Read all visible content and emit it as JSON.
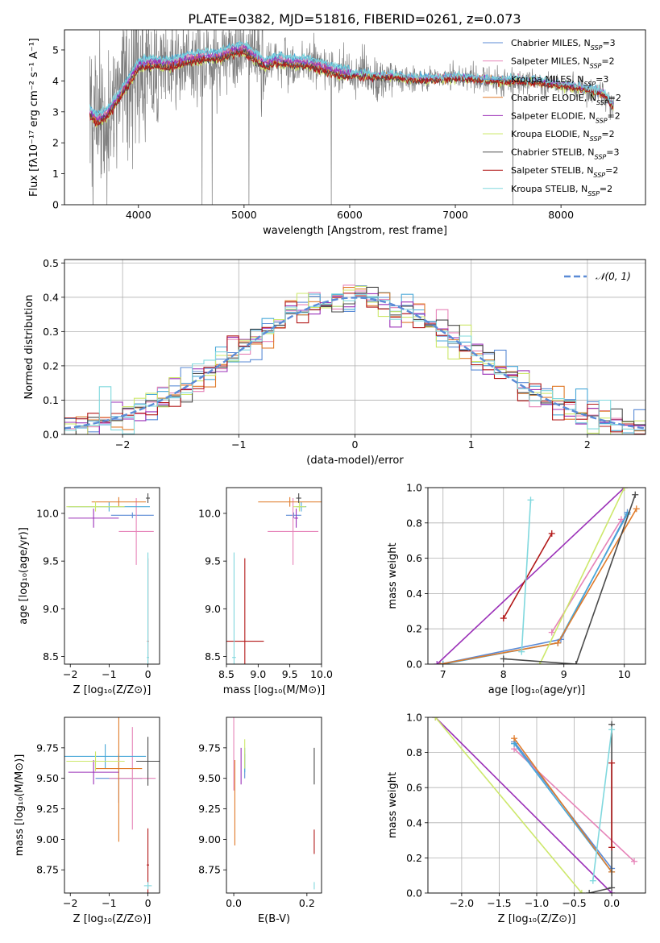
{
  "figure": {
    "title": "PLATE=0382, MJD=51816, FIBERID=0261, z=0.073"
  },
  "colors": {
    "Chabrier MILES": "#5b8bd6",
    "Salpeter MILES": "#e683b8",
    "Kroupa MILES": "#48a8d8",
    "Chabrier ELODIE": "#e07b2a",
    "Salpeter ELODIE": "#9b30b8",
    "Kroupa ELODIE": "#cde86b",
    "Chabrier STELIB": "#4b4b4b",
    "Salpeter STELIB": "#b21818",
    "Kroupa STELIB": "#80d8de",
    "data": "#808080",
    "normal": "#5b8bd6"
  },
  "chart_data": [
    {
      "id": "spectrum",
      "type": "line",
      "xlabel": "wavelength [Angstrom, rest frame]",
      "ylabel": "Flux [fλ10⁻¹⁷ erg cm⁻² s⁻¹ A⁻¹]",
      "xlim": [
        3300,
        8800
      ],
      "ylim": [
        0,
        5.65
      ],
      "xticks": [
        4000,
        5000,
        6000,
        7000,
        8000
      ],
      "yticks": [
        0,
        1,
        2,
        3,
        4,
        5
      ],
      "grid": false,
      "legend_position": "upper right",
      "legend": [
        {
          "name": "Chabrier MILES",
          "main": "Chabrier MILES, N",
          "sub": "SSP",
          "rest": "=3"
        },
        {
          "name": "Salpeter MILES",
          "main": "Salpeter MILES, N",
          "sub": "SSP",
          "rest": "=2"
        },
        {
          "name": "Kroupa MILES",
          "main": "Kroupa MILES, N",
          "sub": "SSP",
          "rest": "=3"
        },
        {
          "name": "Chabrier ELODIE",
          "main": "Chabrier ELODIE, N",
          "sub": "SSP",
          "rest": "=2"
        },
        {
          "name": "Salpeter ELODIE",
          "main": "Salpeter ELODIE, N",
          "sub": "SSP",
          "rest": "=2"
        },
        {
          "name": "Kroupa ELODIE",
          "main": "Kroupa ELODIE, N",
          "sub": "SSP",
          "rest": "=2"
        },
        {
          "name": "Chabrier STELIB",
          "main": "Chabrier STELIB, N",
          "sub": "SSP",
          "rest": "=3"
        },
        {
          "name": "Salpeter STELIB",
          "main": "Salpeter STELIB, N",
          "sub": "SSP",
          "rest": "=2"
        },
        {
          "name": "Kroupa STELIB",
          "main": "Kroupa STELIB, N",
          "sub": "SSP",
          "rest": "=2"
        }
      ],
      "continuum": {
        "x": [
          3530,
          3600,
          3700,
          3800,
          3900,
          4000,
          4100,
          4200,
          4300,
          4400,
          4500,
          4600,
          4700,
          4800,
          4900,
          5000,
          5100,
          5200,
          5300,
          5400,
          5500,
          5600,
          5700,
          5800,
          5900,
          6000,
          6200,
          6400,
          6600,
          6800,
          7000,
          7200,
          7400,
          7600,
          7800,
          8000,
          8200,
          8400,
          8520
        ],
        "y": [
          3.0,
          2.7,
          2.9,
          3.4,
          3.9,
          4.45,
          4.55,
          4.55,
          4.5,
          4.6,
          4.7,
          4.75,
          4.75,
          4.8,
          4.95,
          5.0,
          4.75,
          4.5,
          4.65,
          4.6,
          4.55,
          4.55,
          4.45,
          4.35,
          4.25,
          4.2,
          4.15,
          4.15,
          4.05,
          4.05,
          4.1,
          4.05,
          4.0,
          4.0,
          3.95,
          3.85,
          3.75,
          3.6,
          3.05
        ]
      },
      "model_offsets": [
        0.0,
        0.12,
        0.18,
        -0.02,
        0.05,
        -0.12,
        -0.08,
        -0.1,
        0.2
      ],
      "data_x_range": [
        3540,
        8500
      ]
    },
    {
      "id": "residuals",
      "type": "step",
      "xlabel": "(data-model)/error",
      "ylabel": "Normed distribution",
      "xlim": [
        -2.5,
        2.5
      ],
      "ylim": [
        0,
        0.51
      ],
      "xticks": [
        -2,
        -1,
        0,
        1,
        2
      ],
      "yticks": [
        0.0,
        0.1,
        0.2,
        0.3,
        0.4,
        0.5
      ],
      "grid": true,
      "bin_width": 0.1,
      "legend": [
        {
          "name": "normal",
          "label": "𝒩(0, 1)",
          "style": "dashed"
        }
      ],
      "legend_position": "upper right"
    },
    {
      "id": "age-vs-Z",
      "type": "errorbar",
      "xlabel": "Z [log₁₀(Z/Z⊙)]",
      "ylabel": "age  [log₁₀(age/yr)]",
      "xlim": [
        -2.15,
        0.3
      ],
      "ylim": [
        8.42,
        10.27
      ],
      "xticks": [
        -2,
        -1,
        0
      ],
      "yticks": [
        8.5,
        9.0,
        9.5,
        10.0
      ],
      "grid": false,
      "points": [
        {
          "model": "Chabrier MILES",
          "x": -0.4,
          "xerr": 0.55,
          "y": 9.98,
          "yerr": 0.03
        },
        {
          "model": "Salpeter MILES",
          "x": -0.3,
          "xerr": 0.45,
          "y": 9.81,
          "yerr": 0.35
        },
        {
          "model": "Kroupa MILES",
          "x": -1.0,
          "xerr": 1.05,
          "y": 10.07,
          "yerr": 0.05
        },
        {
          "model": "Chabrier ELODIE",
          "x": -0.75,
          "xerr": 0.7,
          "y": 10.12,
          "yerr": 0.05
        },
        {
          "model": "Salpeter ELODIE",
          "x": -1.4,
          "xerr": 0.65,
          "y": 9.95,
          "yerr": 0.1
        },
        {
          "model": "Kroupa ELODIE",
          "x": -1.35,
          "xerr": 0.75,
          "y": 10.07,
          "yerr": 0.05
        },
        {
          "model": "Chabrier STELIB",
          "x": 0.0,
          "xerr": 0.05,
          "y": 10.16,
          "yerr": 0.05
        },
        {
          "model": "Salpeter STELIB",
          "x": 0.0,
          "xerr": 0.02,
          "y": 8.66,
          "yerr": 0.87
        },
        {
          "model": "Kroupa STELIB",
          "x": 0.0,
          "xerr": 0.03,
          "y": 8.49,
          "yerr": 1.1
        }
      ]
    },
    {
      "id": "age-vs-mass",
      "type": "errorbar",
      "xlabel": "mass [log₁₀(M/M⊙)]",
      "ylabel": "",
      "xlim": [
        8.5,
        10.0
      ],
      "ylim": [
        8.42,
        10.27
      ],
      "xticks": [
        8.5,
        9.0,
        9.5,
        10.0
      ],
      "yticks": [
        8.5,
        9.0,
        9.5,
        10.0
      ],
      "grid": false,
      "points": [
        {
          "model": "Chabrier MILES",
          "x": 9.56,
          "xerr": 0.12,
          "y": 9.98,
          "yerr": 0.03
        },
        {
          "model": "Salpeter MILES",
          "x": 9.55,
          "xerr": 0.4,
          "y": 9.81,
          "yerr": 0.35
        },
        {
          "model": "Kroupa MILES",
          "x": 9.68,
          "xerr": 0.08,
          "y": 10.07,
          "yerr": 0.05
        },
        {
          "model": "Chabrier ELODIE",
          "x": 9.5,
          "xerr": 0.5,
          "y": 10.12,
          "yerr": 0.05
        },
        {
          "model": "Salpeter ELODIE",
          "x": 9.6,
          "xerr": 0.03,
          "y": 9.95,
          "yerr": 0.1
        },
        {
          "model": "Kroupa ELODIE",
          "x": 9.65,
          "xerr": 0.1,
          "y": 10.07,
          "yerr": 0.05
        },
        {
          "model": "Chabrier STELIB",
          "x": 9.64,
          "xerr": 0.04,
          "y": 10.16,
          "yerr": 0.05
        },
        {
          "model": "Salpeter STELIB",
          "x": 8.79,
          "xerr": 0.3,
          "y": 8.66,
          "yerr": 0.87
        },
        {
          "model": "Kroupa STELIB",
          "x": 8.62,
          "xerr": 0.03,
          "y": 8.49,
          "yerr": 1.1
        }
      ]
    },
    {
      "id": "weight-vs-age",
      "type": "line",
      "xlabel": "age  [log₁₀(age/yr)]",
      "ylabel": "mass weight",
      "xlim": [
        6.75,
        10.35
      ],
      "ylim": [
        0,
        1.0
      ],
      "xticks": [
        7,
        8,
        9,
        10
      ],
      "yticks": [
        0.0,
        0.2,
        0.4,
        0.6,
        0.8,
        1.0
      ],
      "grid": true,
      "series": [
        {
          "name": "Chabrier MILES",
          "x": [
            6.95,
            8.95,
            10.05
          ],
          "y": [
            0.0,
            0.14,
            0.86
          ]
        },
        {
          "name": "Salpeter MILES",
          "x": [
            8.8,
            9.95
          ],
          "y": [
            0.18,
            0.82
          ]
        },
        {
          "name": "Kroupa MILES",
          "x": [
            7.0,
            8.9,
            10.05
          ],
          "y": [
            0.0,
            0.12,
            0.85
          ]
        },
        {
          "name": "Chabrier ELODIE",
          "x": [
            6.95,
            8.9,
            10.2
          ],
          "y": [
            0.0,
            0.12,
            0.88
          ]
        },
        {
          "name": "Salpeter ELODIE",
          "x": [
            6.9,
            10.0
          ],
          "y": [
            0.0,
            1.0
          ]
        },
        {
          "name": "Kroupa ELODIE",
          "x": [
            8.6,
            10.0
          ],
          "y": [
            0.0,
            1.0
          ]
        },
        {
          "name": "Chabrier STELIB",
          "x": [
            8.0,
            9.2,
            10.18
          ],
          "y": [
            0.03,
            0.0,
            0.96
          ]
        },
        {
          "name": "Salpeter STELIB",
          "x": [
            8.0,
            8.8
          ],
          "y": [
            0.26,
            0.74
          ]
        },
        {
          "name": "Kroupa STELIB",
          "x": [
            8.3,
            8.45
          ],
          "y": [
            0.07,
            0.93
          ]
        }
      ]
    },
    {
      "id": "mass-vs-Z",
      "type": "errorbar",
      "xlabel": "Z [log₁₀(Z/Z⊙)]",
      "ylabel": "mass [log₁₀(M/M⊙)]",
      "xlim": [
        -2.15,
        0.3
      ],
      "ylim": [
        8.56,
        10.0
      ],
      "xticks": [
        -2,
        -1,
        0
      ],
      "yticks": [
        8.75,
        9.0,
        9.25,
        9.5,
        9.75
      ],
      "grid": false,
      "points": [
        {
          "model": "Chabrier MILES",
          "x": -0.75,
          "xerr": 0.6,
          "y": 9.5,
          "yerr": 0.2
        },
        {
          "model": "Salpeter MILES",
          "x": -0.4,
          "xerr": 0.6,
          "y": 9.5,
          "yerr": 0.42
        },
        {
          "model": "Kroupa MILES",
          "x": -1.1,
          "xerr": 1.05,
          "y": 9.68,
          "yerr": 0.1
        },
        {
          "model": "Chabrier ELODIE",
          "x": -0.75,
          "xerr": 0.6,
          "y": 9.58,
          "yerr": 0.6
        },
        {
          "model": "Salpeter ELODIE",
          "x": -1.4,
          "xerr": 0.65,
          "y": 9.55,
          "yerr": 0.1
        },
        {
          "model": "Kroupa ELODIE",
          "x": -1.35,
          "xerr": 0.75,
          "y": 9.64,
          "yerr": 0.08
        },
        {
          "model": "Chabrier STELIB",
          "x": 0.0,
          "xerr": 0.3,
          "y": 9.64,
          "yerr": 0.2
        },
        {
          "model": "Salpeter STELIB",
          "x": 0.0,
          "xerr": 0.03,
          "y": 8.79,
          "yerr": 0.3
        },
        {
          "model": "Kroupa STELIB",
          "x": 0.0,
          "xerr": 0.1,
          "y": 8.62,
          "yerr": 0.03
        }
      ]
    },
    {
      "id": "mass-vs-EBV",
      "type": "errorbar",
      "xlabel": "E(B-V)",
      "ylabel": "",
      "xlim": [
        -0.02,
        0.24
      ],
      "ylim": [
        8.56,
        10.0
      ],
      "xticks": [
        0.0,
        0.2
      ],
      "yticks": [
        8.75,
        9.0,
        9.25,
        9.5,
        9.75
      ],
      "grid": false,
      "points": [
        {
          "model": "Chabrier MILES",
          "x": 0.03,
          "xerr": 0.0,
          "y": 9.6,
          "yerr": 0.1
        },
        {
          "model": "Salpeter MILES",
          "x": 0.0,
          "xerr": 0.0,
          "y": 9.7,
          "yerr": 0.3
        },
        {
          "model": "Kroupa MILES",
          "x": 0.03,
          "xerr": 0.0,
          "y": 9.65,
          "yerr": 0.1
        },
        {
          "model": "Chabrier ELODIE",
          "x": 0.003,
          "xerr": 0.0,
          "y": 9.3,
          "yerr": 0.35
        },
        {
          "model": "Salpeter ELODIE",
          "x": 0.02,
          "xerr": 0.0,
          "y": 9.6,
          "yerr": 0.15
        },
        {
          "model": "Kroupa ELODIE",
          "x": 0.03,
          "xerr": 0.0,
          "y": 9.7,
          "yerr": 0.12
        },
        {
          "model": "Chabrier STELIB",
          "x": 0.22,
          "xerr": 0.0,
          "y": 9.6,
          "yerr": 0.15
        },
        {
          "model": "Salpeter STELIB",
          "x": 0.22,
          "xerr": 0.0,
          "y": 8.98,
          "yerr": 0.1
        },
        {
          "model": "Kroupa STELIB",
          "x": 0.22,
          "xerr": 0.0,
          "y": 8.62,
          "yerr": 0.03
        }
      ]
    },
    {
      "id": "weight-vs-Z",
      "type": "line",
      "xlabel": "Z [log₁₀(Z/Z⊙)]",
      "ylabel": "mass weight",
      "xlim": [
        -2.45,
        0.45
      ],
      "ylim": [
        0,
        1.0
      ],
      "xticks": [
        -2.0,
        -1.5,
        -1.0,
        -0.5,
        0.0
      ],
      "yticks": [
        0.0,
        0.2,
        0.4,
        0.6,
        0.8,
        1.0
      ],
      "grid": true,
      "series": [
        {
          "name": "Chabrier MILES",
          "x": [
            -1.3,
            0.0
          ],
          "y": [
            0.86,
            0.14
          ]
        },
        {
          "name": "Salpeter MILES",
          "x": [
            -1.3,
            0.3
          ],
          "y": [
            0.82,
            0.18
          ]
        },
        {
          "name": "Kroupa MILES",
          "x": [
            -1.3,
            0.0
          ],
          "y": [
            0.85,
            0.12
          ]
        },
        {
          "name": "Chabrier ELODIE",
          "x": [
            -1.3,
            0.0
          ],
          "y": [
            0.88,
            0.12
          ]
        },
        {
          "name": "Salpeter ELODIE",
          "x": [
            -2.35,
            0.0
          ],
          "y": [
            1.0,
            0.0
          ]
        },
        {
          "name": "Kroupa ELODIE",
          "x": [
            -2.35,
            -0.4
          ],
          "y": [
            1.0,
            0.0
          ]
        },
        {
          "name": "Chabrier STELIB",
          "x": [
            -0.3,
            0.0,
            0.0
          ],
          "y": [
            0.0,
            0.03,
            0.96
          ]
        },
        {
          "name": "Salpeter STELIB",
          "x": [
            0.0,
            0.0
          ],
          "y": [
            0.26,
            0.74
          ]
        },
        {
          "name": "Kroupa STELIB",
          "x": [
            -0.25,
            0.0
          ],
          "y": [
            0.07,
            0.93
          ]
        }
      ]
    }
  ]
}
